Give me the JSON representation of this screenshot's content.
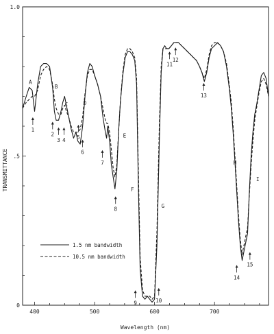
{
  "chart_data": {
    "type": "line",
    "title": "",
    "xlabel": "Wavelength (nm)",
    "ylabel": "TRANSMITTANCE",
    "xlim": [
      380,
      790
    ],
    "ylim": [
      0,
      1.0
    ],
    "x_ticks": [
      {
        "value": 400,
        "label": "400"
      },
      {
        "value": 500,
        "label": "500"
      },
      {
        "value": 600,
        "label": "600"
      },
      {
        "value": 700,
        "label": "700"
      }
    ],
    "y_ticks": [
      {
        "value": 0,
        "label": "0"
      },
      {
        "value": 0.5,
        "label": ".5"
      },
      {
        "value": 1.0,
        "label": "1.0"
      }
    ],
    "grid": false,
    "legend_position": "lower-left",
    "series": [
      {
        "name": "1.5 nm bandwidth",
        "style": "solid",
        "x": [
          380,
          386,
          391,
          396,
          400,
          405,
          410,
          415,
          420,
          425,
          430,
          433,
          436,
          440,
          444,
          447,
          450,
          453,
          457,
          461,
          465,
          469,
          472,
          476,
          480,
          484,
          488,
          492,
          496,
          500,
          505,
          510,
          514,
          518,
          520,
          522,
          525,
          528,
          531,
          534,
          537,
          540,
          543,
          547,
          551,
          555,
          559,
          563,
          567,
          570,
          573,
          576,
          580,
          584,
          588,
          592,
          596,
          600,
          604,
          608,
          611,
          614,
          617,
          620,
          624,
          628,
          632,
          636,
          640,
          645,
          650,
          655,
          660,
          665,
          670,
          675,
          679,
          683,
          687,
          691,
          695,
          700,
          705,
          710,
          715,
          720,
          725,
          728,
          731,
          734,
          737,
          740,
          743,
          746,
          749,
          752,
          755,
          758,
          761,
          764,
          767,
          770,
          774,
          778,
          782,
          786,
          790
        ],
        "y": [
          0.66,
          0.7,
          0.73,
          0.72,
          0.65,
          0.74,
          0.8,
          0.81,
          0.81,
          0.8,
          0.73,
          0.65,
          0.62,
          0.62,
          0.65,
          0.68,
          0.7,
          0.67,
          0.63,
          0.59,
          0.56,
          0.58,
          0.55,
          0.54,
          0.6,
          0.7,
          0.78,
          0.81,
          0.8,
          0.77,
          0.74,
          0.7,
          0.63,
          0.58,
          0.56,
          0.6,
          0.55,
          0.47,
          0.43,
          0.39,
          0.45,
          0.58,
          0.68,
          0.77,
          0.83,
          0.85,
          0.85,
          0.84,
          0.82,
          0.74,
          0.4,
          0.12,
          0.03,
          0.02,
          0.03,
          0.02,
          0.01,
          0.02,
          0.2,
          0.55,
          0.78,
          0.86,
          0.87,
          0.86,
          0.86,
          0.87,
          0.88,
          0.88,
          0.88,
          0.87,
          0.86,
          0.85,
          0.84,
          0.83,
          0.82,
          0.8,
          0.78,
          0.75,
          0.78,
          0.83,
          0.86,
          0.87,
          0.88,
          0.87,
          0.85,
          0.8,
          0.72,
          0.66,
          0.58,
          0.48,
          0.38,
          0.28,
          0.2,
          0.15,
          0.18,
          0.21,
          0.24,
          0.38,
          0.5,
          0.58,
          0.64,
          0.67,
          0.72,
          0.77,
          0.78,
          0.76,
          0.7
        ]
      },
      {
        "name": "10.5 nm bandwidth",
        "style": "dashed",
        "x": [
          380,
          386,
          391,
          396,
          400,
          405,
          410,
          415,
          420,
          425,
          430,
          433,
          436,
          440,
          444,
          447,
          450,
          453,
          457,
          461,
          465,
          469,
          472,
          476,
          480,
          484,
          488,
          492,
          496,
          500,
          505,
          510,
          514,
          518,
          520,
          522,
          525,
          528,
          531,
          534,
          537,
          540,
          543,
          547,
          551,
          555,
          559,
          563,
          567,
          570,
          573,
          576,
          580,
          584,
          588,
          592,
          596,
          600,
          604,
          608,
          611,
          614,
          617,
          620,
          624,
          628,
          632,
          636,
          640,
          645,
          650,
          655,
          660,
          665,
          670,
          675,
          679,
          683,
          687,
          691,
          695,
          700,
          705,
          710,
          715,
          720,
          725,
          728,
          731,
          734,
          737,
          740,
          743,
          746,
          749,
          752,
          755,
          758,
          761,
          764,
          767,
          770,
          774,
          778,
          782,
          786,
          790
        ],
        "y": [
          0.66,
          0.68,
          0.69,
          0.7,
          0.7,
          0.72,
          0.77,
          0.79,
          0.8,
          0.79,
          0.74,
          0.69,
          0.66,
          0.64,
          0.64,
          0.66,
          0.67,
          0.65,
          0.63,
          0.6,
          0.58,
          0.58,
          0.58,
          0.59,
          0.63,
          0.71,
          0.77,
          0.79,
          0.79,
          0.77,
          0.74,
          0.7,
          0.66,
          0.62,
          0.61,
          0.61,
          0.58,
          0.52,
          0.46,
          0.43,
          0.47,
          0.58,
          0.68,
          0.78,
          0.84,
          0.86,
          0.86,
          0.85,
          0.83,
          0.76,
          0.45,
          0.16,
          0.05,
          0.03,
          0.03,
          0.03,
          0.02,
          0.03,
          0.25,
          0.6,
          0.8,
          0.86,
          0.86,
          0.86,
          0.86,
          0.87,
          0.88,
          0.88,
          0.88,
          0.87,
          0.86,
          0.85,
          0.84,
          0.83,
          0.82,
          0.8,
          0.78,
          0.76,
          0.79,
          0.84,
          0.87,
          0.88,
          0.88,
          0.87,
          0.85,
          0.81,
          0.73,
          0.68,
          0.6,
          0.5,
          0.4,
          0.3,
          0.22,
          0.17,
          0.2,
          0.23,
          0.26,
          0.37,
          0.47,
          0.55,
          0.62,
          0.66,
          0.71,
          0.75,
          0.76,
          0.74,
          0.7
        ]
      }
    ],
    "annotations": [
      {
        "text": "A",
        "x": 393,
        "y": 0.76
      },
      {
        "text": "B",
        "x": 436,
        "y": 0.745
      },
      {
        "text": "C",
        "x": 453,
        "y": 0.685
      },
      {
        "text": "D",
        "x": 484,
        "y": 0.69
      },
      {
        "text": "E",
        "x": 550,
        "y": 0.58
      },
      {
        "text": "F",
        "x": 563,
        "y": 0.4
      },
      {
        "text": "G",
        "x": 614,
        "y": 0.345
      },
      {
        "text": "H",
        "x": 734,
        "y": 0.49
      },
      {
        "text": "I",
        "x": 772,
        "y": 0.435
      },
      {
        "text": "1",
        "x": 397,
        "y": 0.6
      },
      {
        "text": "2",
        "x": 430,
        "y": 0.585
      },
      {
        "text": "3",
        "x": 440,
        "y": 0.566
      },
      {
        "text": "4",
        "x": 449,
        "y": 0.566
      },
      {
        "text": "5",
        "x": 473,
        "y": 0.575
      },
      {
        "text": "6",
        "x": 480,
        "y": 0.525
      },
      {
        "text": "7",
        "x": 513,
        "y": 0.49
      },
      {
        "text": "8",
        "x": 535,
        "y": 0.335
      },
      {
        "text": "9",
        "x": 568,
        "y": 0.02
      },
      {
        "text": "10",
        "x": 607,
        "y": 0.028
      },
      {
        "text": "11",
        "x": 625,
        "y": 0.82
      },
      {
        "text": "12",
        "x": 635,
        "y": 0.834
      },
      {
        "text": "13",
        "x": 682,
        "y": 0.715
      },
      {
        "text": "14",
        "x": 737,
        "y": 0.105
      },
      {
        "text": "15",
        "x": 759,
        "y": 0.148
      }
    ]
  }
}
